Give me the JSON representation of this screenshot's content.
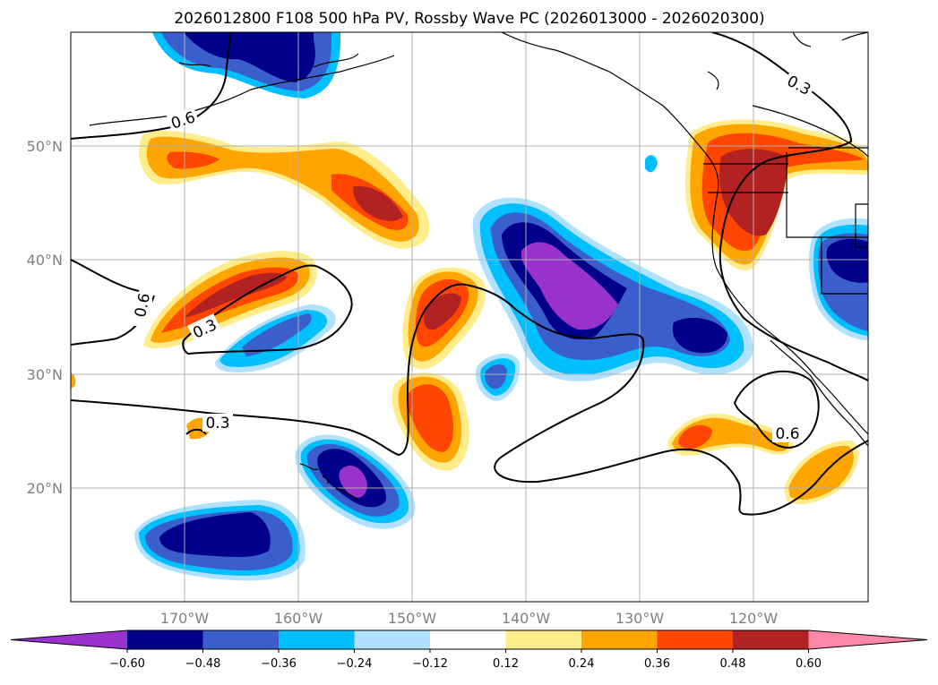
{
  "title": "2026012800 F108 500 hPa PV, Rossby Wave PC (2026013000 - 2026020300)",
  "map": {
    "lon_range": [
      -180,
      -110
    ],
    "lat_range": [
      10,
      60
    ],
    "lat_ticks": [
      {
        "value": 50,
        "label": "50°N"
      },
      {
        "value": 40,
        "label": "40°N"
      },
      {
        "value": 30,
        "label": "30°N"
      },
      {
        "value": 20,
        "label": "20°N"
      }
    ],
    "lon_ticks": [
      {
        "value": -170,
        "label": "170°W"
      },
      {
        "value": -160,
        "label": "160°W"
      },
      {
        "value": -150,
        "label": "150°W"
      },
      {
        "value": -140,
        "label": "140°W"
      },
      {
        "value": -130,
        "label": "130°W"
      },
      {
        "value": -120,
        "label": "120°W"
      }
    ],
    "gridlines": true
  },
  "contour_labels": [
    "0.6",
    "0.3",
    "0.6",
    "0.3",
    "0.3",
    "0.6"
  ],
  "colorbar": {
    "tick_labels": [
      "−0.60",
      "−0.48",
      "−0.36",
      "−0.24",
      "−0.12",
      "0.12",
      "0.24",
      "0.36",
      "0.48",
      "0.60"
    ],
    "colors": [
      "#9932CC",
      "#00008B",
      "#3A5FCD",
      "#00BFFF",
      "#B0E2FF",
      "#FFFFFF",
      "#FFEC8B",
      "#FFA500",
      "#FF4500",
      "#B22222",
      "#FF88AA"
    ]
  },
  "palette": {
    "purple": "#9932CC",
    "navy": "#00008B",
    "blue": "#3A5FCD",
    "sky": "#00BFFF",
    "pale_blue": "#B0E2FF",
    "white": "#FFFFFF",
    "yellow": "#FFEC8B",
    "orange": "#FFA500",
    "red_orange": "#FF4500",
    "dark_red": "#B22222"
  }
}
